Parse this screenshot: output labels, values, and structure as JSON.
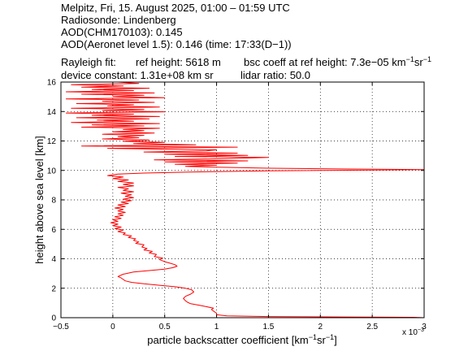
{
  "header": {
    "line1": "Melpitz, Fri, 15. August 2025, 01:00 – 01:59 UTC",
    "line2": "Radiosonde: Lindenberg",
    "line3": "AOD(CHM170103): 0.145",
    "line4": "AOD(Aeronet level 1.5): 0.146   (time: 17:33(D−1))",
    "line5a": "Rayleigh fit:",
    "line5b": "ref height: 5618 m",
    "line5c": "bsc coeff at ref height: 7.3e−05 km",
    "line5c_sup1": "−1",
    "line5c_mid": "sr",
    "line5c_sup2": "−1",
    "line6a": "device constant: 1.31e+08 km sr",
    "line6b": "lidar ratio: 50.0"
  },
  "chart_data": {
    "type": "line",
    "title": "",
    "xlabel": "particle backscatter coefficient [km",
    "xlabel_sup1": "−1",
    "xlabel_mid": "sr",
    "xlabel_sup2": "−1",
    "xlabel_end": "]",
    "ylabel": "height above sea level [km]",
    "x_multiplier": "x 10",
    "x_multiplier_exp": "−3",
    "xlim": [
      -0.5,
      3
    ],
    "ylim": [
      0,
      16
    ],
    "xticks": [
      -0.5,
      0,
      0.5,
      1,
      1.5,
      2,
      2.5,
      3
    ],
    "xtick_labels": [
      "−0.5",
      "0",
      "0.5",
      "1",
      "1.5",
      "2",
      "2.5",
      "3"
    ],
    "yticks": [
      0,
      2,
      4,
      6,
      8,
      10,
      12,
      14,
      16
    ],
    "ytick_labels": [
      "0",
      "2",
      "4",
      "6",
      "8",
      "10",
      "12",
      "14",
      "16"
    ],
    "grid": true,
    "series": [
      {
        "color": "#ff0000",
        "points": [
          [
            3.0,
            0.0
          ],
          [
            2.9,
            0.03
          ],
          [
            2.2,
            0.05
          ],
          [
            1.5,
            0.08
          ],
          [
            1.1,
            0.12
          ],
          [
            1.0,
            0.2
          ],
          [
            1.0,
            0.3
          ],
          [
            0.97,
            0.45
          ],
          [
            0.95,
            0.55
          ],
          [
            0.97,
            0.65
          ],
          [
            0.9,
            0.75
          ],
          [
            0.83,
            0.85
          ],
          [
            0.75,
            0.95
          ],
          [
            0.72,
            1.05
          ],
          [
            0.7,
            1.15
          ],
          [
            0.68,
            1.3
          ],
          [
            0.7,
            1.45
          ],
          [
            0.75,
            1.6
          ],
          [
            0.78,
            1.75
          ],
          [
            0.76,
            1.9
          ],
          [
            0.7,
            2.0
          ],
          [
            0.6,
            2.1
          ],
          [
            0.45,
            2.2
          ],
          [
            0.3,
            2.3
          ],
          [
            0.18,
            2.4
          ],
          [
            0.12,
            2.5
          ],
          [
            0.1,
            2.6
          ],
          [
            0.08,
            2.7
          ],
          [
            0.05,
            2.8
          ],
          [
            0.1,
            2.95
          ],
          [
            0.2,
            3.1
          ],
          [
            0.35,
            3.2
          ],
          [
            0.5,
            3.3
          ],
          [
            0.58,
            3.4
          ],
          [
            0.62,
            3.5
          ],
          [
            0.6,
            3.6
          ],
          [
            0.55,
            3.7
          ],
          [
            0.5,
            3.8
          ],
          [
            0.45,
            3.95
          ],
          [
            0.48,
            4.05
          ],
          [
            0.4,
            4.15
          ],
          [
            0.42,
            4.3
          ],
          [
            0.35,
            4.4
          ],
          [
            0.38,
            4.5
          ],
          [
            0.3,
            4.6
          ],
          [
            0.33,
            4.7
          ],
          [
            0.28,
            4.8
          ],
          [
            0.3,
            4.95
          ],
          [
            0.22,
            5.05
          ],
          [
            0.25,
            5.15
          ],
          [
            0.2,
            5.25
          ],
          [
            0.22,
            5.35
          ],
          [
            0.15,
            5.45
          ],
          [
            0.18,
            5.55
          ],
          [
            0.1,
            5.65
          ],
          [
            0.12,
            5.75
          ],
          [
            0.05,
            5.85
          ],
          [
            0.1,
            5.95
          ],
          [
            0.02,
            6.05
          ],
          [
            0.08,
            6.15
          ],
          [
            0.0,
            6.25
          ],
          [
            0.05,
            6.35
          ],
          [
            -0.02,
            6.45
          ],
          [
            0.05,
            6.55
          ],
          [
            0.0,
            6.65
          ],
          [
            0.08,
            6.75
          ],
          [
            0.02,
            6.85
          ],
          [
            0.1,
            6.95
          ],
          [
            0.05,
            7.05
          ],
          [
            0.12,
            7.15
          ],
          [
            0.05,
            7.25
          ],
          [
            0.1,
            7.35
          ],
          [
            0.02,
            7.45
          ],
          [
            0.12,
            7.55
          ],
          [
            0.05,
            7.65
          ],
          [
            0.15,
            7.75
          ],
          [
            0.08,
            7.85
          ],
          [
            0.18,
            7.95
          ],
          [
            0.1,
            8.05
          ],
          [
            0.2,
            8.15
          ],
          [
            0.12,
            8.25
          ],
          [
            0.18,
            8.35
          ],
          [
            0.08,
            8.45
          ],
          [
            0.2,
            8.55
          ],
          [
            0.1,
            8.65
          ],
          [
            0.15,
            8.75
          ],
          [
            0.05,
            8.85
          ],
          [
            0.2,
            8.95
          ],
          [
            0.1,
            9.05
          ],
          [
            0.2,
            9.15
          ],
          [
            0.05,
            9.25
          ],
          [
            0.15,
            9.35
          ],
          [
            0.0,
            9.45
          ],
          [
            0.1,
            9.55
          ],
          [
            -0.05,
            9.65
          ],
          [
            0.05,
            9.75
          ],
          [
            0.3,
            9.82
          ],
          [
            0.8,
            9.9
          ],
          [
            1.5,
            9.97
          ],
          [
            3.0,
            10.05
          ],
          [
            2.2,
            10.1
          ],
          [
            1.5,
            10.15
          ],
          [
            1.0,
            10.22
          ],
          [
            0.7,
            10.28
          ],
          [
            1.0,
            10.35
          ],
          [
            0.6,
            10.42
          ],
          [
            1.2,
            10.5
          ],
          [
            0.5,
            10.58
          ],
          [
            1.3,
            10.65
          ],
          [
            0.4,
            10.72
          ],
          [
            1.1,
            10.8
          ],
          [
            1.5,
            10.88
          ],
          [
            0.6,
            10.95
          ],
          [
            1.3,
            11.02
          ],
          [
            0.5,
            11.1
          ],
          [
            1.2,
            11.17
          ],
          [
            0.3,
            11.25
          ],
          [
            0.9,
            11.32
          ],
          [
            1.0,
            11.4
          ],
          [
            -0.05,
            11.5
          ],
          [
            1.2,
            11.58
          ],
          [
            -0.3,
            11.66
          ],
          [
            0.8,
            11.74
          ],
          [
            0.2,
            11.82
          ],
          [
            0.5,
            11.9
          ],
          [
            0.1,
            11.98
          ],
          [
            0.35,
            12.06
          ],
          [
            -0.1,
            12.14
          ],
          [
            0.25,
            12.22
          ],
          [
            0.05,
            12.3
          ],
          [
            0.3,
            12.38
          ],
          [
            -0.1,
            12.46
          ],
          [
            0.4,
            12.54
          ],
          [
            0.0,
            12.62
          ],
          [
            0.3,
            12.7
          ],
          [
            0.1,
            12.78
          ],
          [
            0.45,
            12.86
          ],
          [
            -0.3,
            12.94
          ],
          [
            0.3,
            13.02
          ],
          [
            -0.2,
            13.1
          ],
          [
            0.45,
            13.18
          ],
          [
            -0.4,
            13.26
          ],
          [
            0.2,
            13.34
          ],
          [
            -0.15,
            13.42
          ],
          [
            0.35,
            13.5
          ],
          [
            -0.35,
            13.58
          ],
          [
            0.45,
            13.66
          ],
          [
            -0.2,
            13.74
          ],
          [
            0.2,
            13.82
          ],
          [
            -0.45,
            13.9
          ],
          [
            0.5,
            13.98
          ],
          [
            -0.1,
            14.06
          ],
          [
            0.3,
            14.14
          ],
          [
            -0.4,
            14.22
          ],
          [
            0.45,
            14.3
          ],
          [
            -0.05,
            14.38
          ],
          [
            0.2,
            14.46
          ],
          [
            -0.35,
            14.54
          ],
          [
            0.4,
            14.62
          ],
          [
            -0.1,
            14.7
          ],
          [
            0.25,
            14.78
          ],
          [
            -0.45,
            14.86
          ],
          [
            0.5,
            14.94
          ],
          [
            0.0,
            15.02
          ],
          [
            0.3,
            15.1
          ],
          [
            -0.3,
            15.18
          ],
          [
            0.4,
            15.26
          ],
          [
            -0.45,
            15.34
          ],
          [
            0.2,
            15.42
          ],
          [
            -0.2,
            15.5
          ],
          [
            0.35,
            15.58
          ],
          [
            -0.3,
            15.66
          ],
          [
            0.1,
            15.74
          ],
          [
            -0.4,
            15.82
          ],
          [
            0.25,
            15.9
          ],
          [
            0.05,
            16.0
          ]
        ]
      }
    ]
  }
}
